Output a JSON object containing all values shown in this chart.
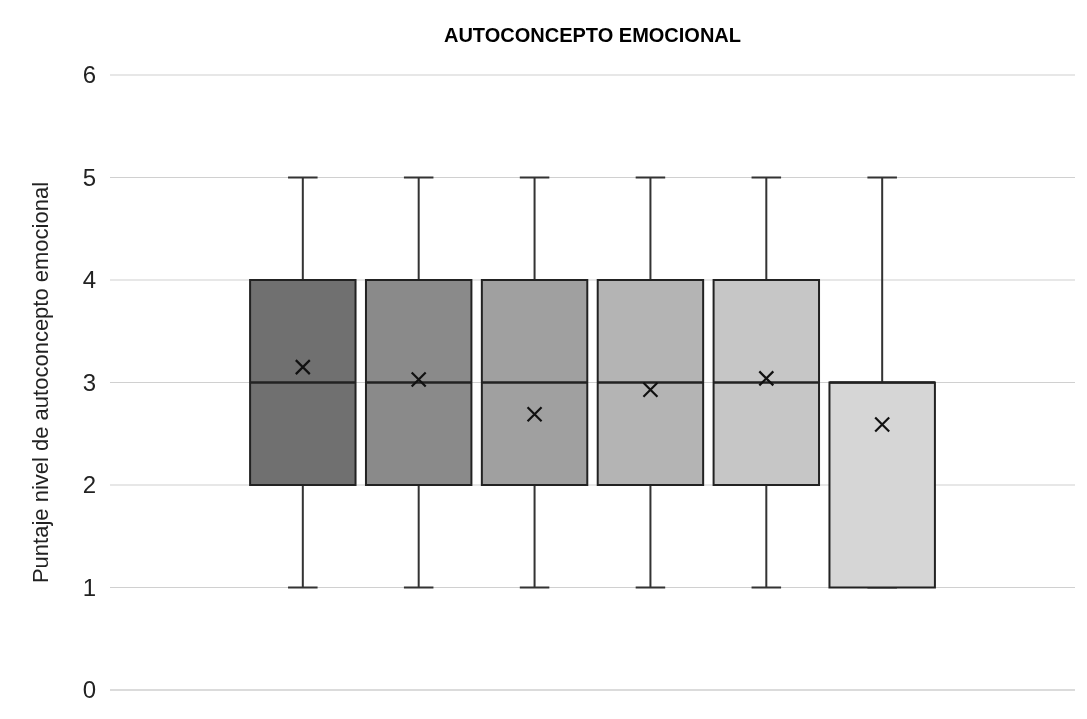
{
  "chart_data": {
    "type": "box",
    "title": "AUTOCONCEPTO EMOCIONAL",
    "ylabel": "Puntaje nivel de autoconcepto emocional",
    "categories": [
      null
    ],
    "series": [
      {
        "color": "#707070",
        "boxes": [
          {
            "low": 1,
            "q1": 2,
            "median": 3,
            "q3": 4,
            "high": 5,
            "mean": 3.15
          }
        ]
      },
      {
        "color": "#8a8a8a",
        "boxes": [
          {
            "low": 1,
            "q1": 2,
            "median": 3,
            "q3": 4,
            "high": 5,
            "mean": 3.03
          }
        ]
      },
      {
        "color": "#a0a0a0",
        "boxes": [
          {
            "low": 1,
            "q1": 2,
            "median": 3,
            "q3": 4,
            "high": 5,
            "mean": 2.69
          }
        ]
      },
      {
        "color": "#b4b4b4",
        "boxes": [
          {
            "low": 1,
            "q1": 2,
            "median": 3,
            "q3": 4,
            "high": 5,
            "mean": 2.93
          }
        ]
      },
      {
        "color": "#c6c6c6",
        "boxes": [
          {
            "low": 1,
            "q1": 2,
            "median": 3,
            "q3": 4,
            "high": 5,
            "mean": 3.04
          }
        ]
      },
      {
        "color": "#d6d6d6",
        "boxes": [
          {
            "low": 1,
            "q1": 1,
            "median": 3,
            "q3": 3,
            "high": 5,
            "mean": 2.59
          }
        ]
      }
    ],
    "ylim": [
      0,
      6
    ],
    "yticks": [
      0,
      1,
      2,
      3,
      4,
      5,
      6
    ],
    "grid": "y",
    "marker": "cross"
  }
}
